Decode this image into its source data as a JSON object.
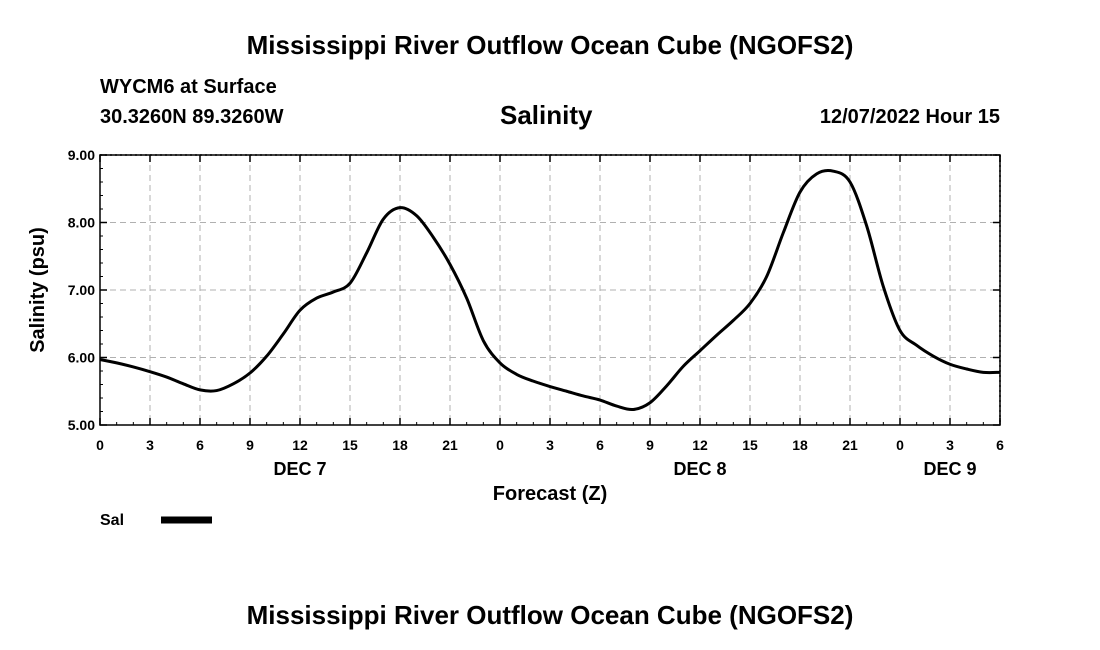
{
  "header": {
    "title": "Mississippi River Outflow Ocean Cube (NGOFS2)",
    "station": "WYCM6 at Surface",
    "coords": "30.3260N  89.3260W",
    "variable": "Salinity",
    "datetime": "12/07/2022 Hour 15"
  },
  "footer": {
    "title": "Mississippi River Outflow Ocean Cube (NGOFS2)"
  },
  "chart_data": {
    "type": "line",
    "xlabel": "Forecast (Z)",
    "ylabel": "Salinity (psu)",
    "ylim": [
      5.0,
      9.0
    ],
    "xlim": [
      0,
      54
    ],
    "y_ticks": [
      "5.00",
      "6.00",
      "7.00",
      "8.00",
      "9.00"
    ],
    "x_ticks": [
      "0",
      "3",
      "6",
      "9",
      "12",
      "15",
      "18",
      "21",
      "0",
      "3",
      "6",
      "9",
      "12",
      "15",
      "18",
      "21",
      "0",
      "3",
      "6"
    ],
    "date_labels": [
      {
        "label": "DEC 7",
        "hour": 12
      },
      {
        "label": "DEC 8",
        "hour": 36
      },
      {
        "label": "DEC 9",
        "hour": 51
      }
    ],
    "grid": true,
    "legend": [
      {
        "name": "Sal",
        "color": "#000000"
      }
    ],
    "series": [
      {
        "name": "Sal",
        "color": "#000000",
        "x": [
          0,
          1,
          2,
          3,
          4,
          5,
          6,
          7,
          8,
          9,
          10,
          11,
          12,
          13,
          14,
          15,
          16,
          17,
          18,
          19,
          20,
          21,
          22,
          23,
          24,
          25,
          26,
          27,
          28,
          29,
          30,
          31,
          32,
          33,
          34,
          35,
          36,
          37,
          38,
          39,
          40,
          41,
          42,
          43,
          44,
          45,
          46,
          47,
          48,
          49,
          50,
          51,
          52,
          53,
          54
        ],
        "y": [
          5.97,
          5.92,
          5.86,
          5.79,
          5.71,
          5.61,
          5.52,
          5.51,
          5.61,
          5.77,
          6.02,
          6.35,
          6.7,
          6.88,
          6.97,
          7.1,
          7.55,
          8.05,
          8.22,
          8.1,
          7.78,
          7.38,
          6.88,
          6.25,
          5.92,
          5.75,
          5.65,
          5.57,
          5.5,
          5.43,
          5.37,
          5.28,
          5.23,
          5.33,
          5.58,
          5.87,
          6.1,
          6.33,
          6.55,
          6.8,
          7.2,
          7.85,
          8.45,
          8.72,
          8.76,
          8.6,
          7.95,
          7.05,
          6.4,
          6.18,
          6.02,
          5.9,
          5.83,
          5.78,
          5.78
        ]
      }
    ]
  }
}
